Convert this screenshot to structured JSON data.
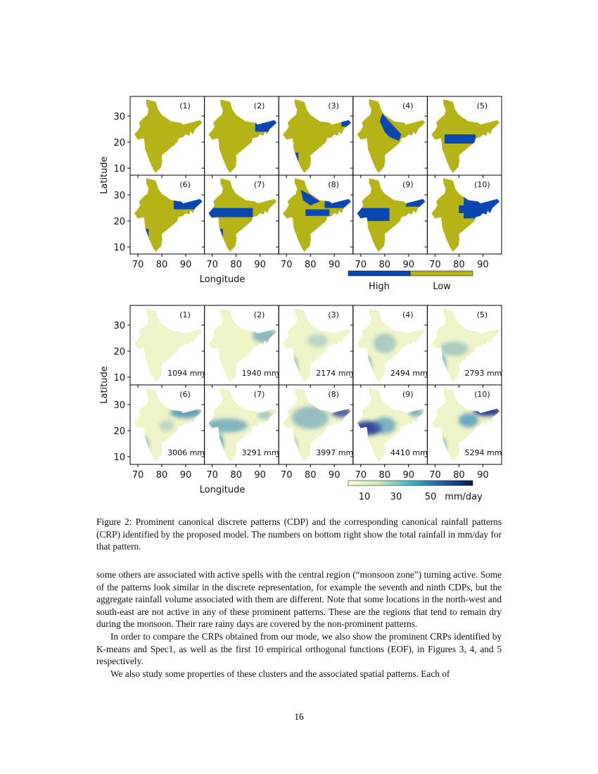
{
  "figure_top": {
    "panel_labels": [
      "(1)",
      "(2)",
      "(3)",
      "(4)",
      "(5)",
      "(6)",
      "(7)",
      "(8)",
      "(9)",
      "(10)"
    ],
    "y_ticks": [
      "30",
      "20",
      "10"
    ],
    "x_ticks": [
      "70",
      "80",
      "90"
    ],
    "y_label": "Latitude",
    "x_label": "Longitude",
    "legend": [
      "High",
      "Low"
    ]
  },
  "figure_bottom": {
    "panel_labels": [
      "(1)",
      "(2)",
      "(3)",
      "(4)",
      "(5)",
      "(6)",
      "(7)",
      "(8)",
      "(9)",
      "(10)"
    ],
    "totals": [
      "1094 mm",
      "1940 mm",
      "2174 mm",
      "2494 mm",
      "2793 mm",
      "3006 mm",
      "3291 mm",
      "3997 mm",
      "4410 mm",
      "5294 mm"
    ],
    "y_ticks": [
      "30",
      "20",
      "10"
    ],
    "x_ticks": [
      "70",
      "80",
      "90"
    ],
    "y_label": "Latitude",
    "x_label": "Longitude",
    "colorbar_ticks": [
      "10",
      "30",
      "50"
    ],
    "colorbar_unit": "mm/day"
  },
  "caption": "Figure 2: Prominent canonical discrete patterns (CDP) and the corresponding canonical rainfall patterns (CRP) identified by the proposed model. The numbers on bottom right show the total rainfall in mm/day for that pattern.",
  "paragraphs": [
    "some others are associated with active spells with the central region (“monsoon zone”) turning active. Some of the patterns look similar in the discrete representation, for example the seventh and ninth CDPs, but the aggregate rainfall volume associated with them are different. Note that some locations in the north-west and south-east are not active in any of these prominent patterns. These are the regions that tend to remain dry during the monsoon. Their rare rainy days are covered by the non-prominent patterns.",
    "In order to compare the CRPs obtained from our mode, we also show the prominent CRPs identified by K-means and Spec1, as well as the first 10 empirical orthogonal functions (EOF), in Figures 3, 4, and 5 respectively.",
    "We also study some properties of these clusters and the associated spatial patterns. Each of"
  ],
  "page_number": "16"
}
